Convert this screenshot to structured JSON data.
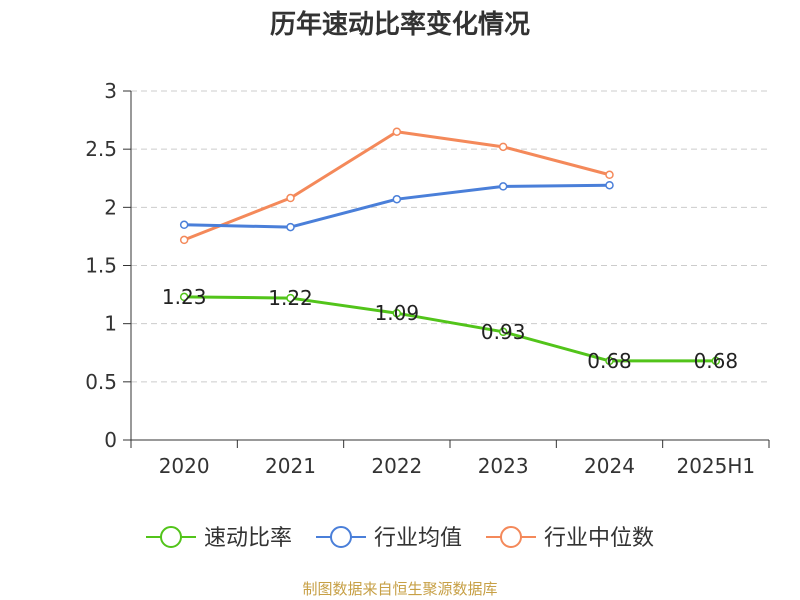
{
  "source": "制图数据来自恒生聚源数据库",
  "chart_data": {
    "type": "line",
    "title": "历年速动比率变化情况",
    "xlabel": "",
    "ylabel": "",
    "categories": [
      "2020",
      "2021",
      "2022",
      "2023",
      "2024",
      "2025H1"
    ],
    "ylim": [
      0,
      3
    ],
    "yticks": [
      "0",
      "0.5",
      "1",
      "1.5",
      "2",
      "2.5",
      "3"
    ],
    "grid": true,
    "legend_position": "bottom",
    "series": [
      {
        "name": "速动比率",
        "color": "#52c41a",
        "values": [
          1.23,
          1.22,
          1.09,
          0.93,
          0.68,
          0.68
        ],
        "labels": [
          "1.23",
          "1.22",
          "1.09",
          "0.93",
          "0.68",
          "0.68"
        ]
      },
      {
        "name": "行业均值",
        "color": "#4a7fd9",
        "values": [
          1.85,
          1.83,
          2.07,
          2.18,
          2.19,
          null
        ]
      },
      {
        "name": "行业中位数",
        "color": "#f4895a",
        "values": [
          1.72,
          2.08,
          2.65,
          2.52,
          2.28,
          null
        ]
      }
    ]
  }
}
